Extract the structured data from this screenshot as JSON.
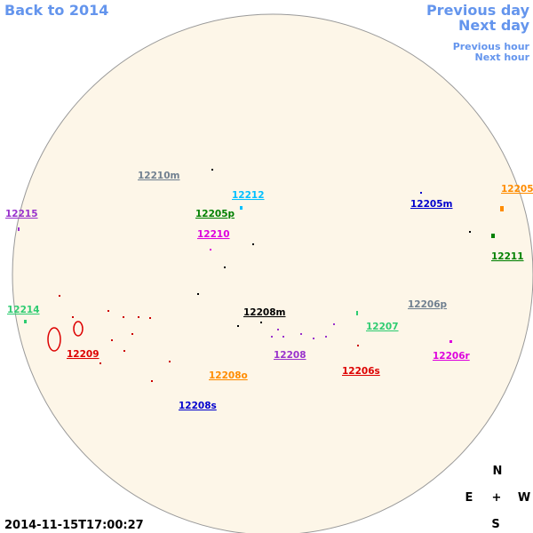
{
  "nav": {
    "back": "Back to 2014",
    "previous_day": "Previous day",
    "next_day": "Next day",
    "previous_hour": "Previous hour",
    "next_hour": "Next hour"
  },
  "regions": [
    "12210m",
    "12212",
    "12205p",
    "12210",
    "12215",
    "12205m",
    "12205",
    "12211",
    "12214",
    "12206p",
    "12208m",
    "12207",
    "12209",
    "12208",
    "12206r",
    "12206s",
    "12208o",
    "12208s"
  ],
  "compass": {
    "north": "N",
    "east": "E",
    "center": "+",
    "west": "W",
    "south": "S"
  },
  "timestamp": "2014-11-15T17:00:27"
}
